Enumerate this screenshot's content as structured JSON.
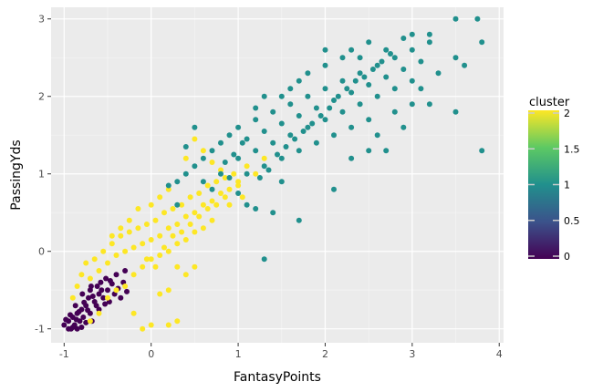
{
  "chart_data": {
    "type": "scatter",
    "title": "",
    "xlabel": "FantasyPoints",
    "ylabel": "PassingYds",
    "xlim": [
      -1.15,
      4.05
    ],
    "ylim": [
      -1.18,
      3.15
    ],
    "x_ticks": [
      -1,
      0,
      1,
      2,
      3,
      4
    ],
    "y_ticks": [
      -1,
      0,
      1,
      2,
      3
    ],
    "x_tick_labels": [
      "-1",
      "0",
      "1",
      "2",
      "3",
      "4"
    ],
    "y_tick_labels": [
      "-1",
      "0",
      "1",
      "2",
      "3"
    ],
    "grid": true,
    "background": "#ebebeb",
    "legend": {
      "title": "cluster",
      "type": "colorbar",
      "placement": "right",
      "range": [
        0,
        2
      ],
      "ticks": [
        0,
        0.5,
        1,
        1.5,
        2
      ],
      "tick_labels": [
        "0",
        "0.5",
        "1",
        "1.5",
        "2"
      ],
      "colors": [
        "#440154",
        "#3b528b",
        "#21908d",
        "#5dc963",
        "#fde725"
      ]
    },
    "series": [
      {
        "cluster": 0,
        "color": "#440154",
        "points": [
          [
            -1.0,
            -0.95
          ],
          [
            -0.95,
            -0.9
          ],
          [
            -0.92,
            -1.0
          ],
          [
            -0.9,
            -0.85
          ],
          [
            -0.88,
            -0.95
          ],
          [
            -0.85,
            -1.0
          ],
          [
            -0.85,
            -0.8
          ],
          [
            -0.82,
            -0.9
          ],
          [
            -0.8,
            -0.75
          ],
          [
            -0.8,
            -0.98
          ],
          [
            -0.78,
            -0.85
          ],
          [
            -0.75,
            -0.7
          ],
          [
            -0.75,
            -0.92
          ],
          [
            -0.72,
            -0.6
          ],
          [
            -0.7,
            -0.8
          ],
          [
            -0.7,
            -0.5
          ],
          [
            -0.68,
            -0.9
          ],
          [
            -0.65,
            -0.65
          ],
          [
            -0.62,
            -0.45
          ],
          [
            -0.6,
            -0.75
          ],
          [
            -0.6,
            -0.55
          ],
          [
            -0.58,
            -0.4
          ],
          [
            -0.55,
            -0.6
          ],
          [
            -0.52,
            -0.35
          ],
          [
            -0.5,
            -0.5
          ],
          [
            -0.48,
            -0.65
          ],
          [
            -0.45,
            -0.42
          ],
          [
            -0.42,
            -0.55
          ],
          [
            -0.4,
            -0.3
          ],
          [
            -0.38,
            -0.48
          ],
          [
            -0.35,
            -0.6
          ],
          [
            -0.32,
            -0.4
          ],
          [
            -0.3,
            -0.25
          ],
          [
            -0.28,
            -0.52
          ],
          [
            -0.95,
            -1.0
          ],
          [
            -0.98,
            -0.88
          ],
          [
            -0.9,
            -0.98
          ],
          [
            -0.86,
            -0.88
          ],
          [
            -0.83,
            -0.78
          ],
          [
            -0.77,
            -0.66
          ],
          [
            -0.73,
            -0.76
          ],
          [
            -0.67,
            -0.58
          ],
          [
            -0.63,
            -0.7
          ],
          [
            -0.57,
            -0.5
          ],
          [
            -0.53,
            -0.68
          ],
          [
            -0.47,
            -0.38
          ],
          [
            -0.87,
            -0.7
          ],
          [
            -0.93,
            -0.82
          ],
          [
            -0.79,
            -0.55
          ],
          [
            -0.69,
            -0.45
          ]
        ]
      },
      {
        "cluster": 2,
        "color": "#fde725",
        "points": [
          [
            -0.9,
            -0.6
          ],
          [
            -0.85,
            -0.45
          ],
          [
            -0.8,
            -0.3
          ],
          [
            -0.75,
            -0.15
          ],
          [
            -0.7,
            -0.35
          ],
          [
            -0.65,
            -0.1
          ],
          [
            -0.6,
            -0.25
          ],
          [
            -0.55,
            0.0
          ],
          [
            -0.5,
            -0.15
          ],
          [
            -0.45,
            0.1
          ],
          [
            -0.4,
            -0.05
          ],
          [
            -0.35,
            0.2
          ],
          [
            -0.3,
            0.0
          ],
          [
            -0.25,
            0.25
          ],
          [
            -0.2,
            0.05
          ],
          [
            -0.15,
            0.3
          ],
          [
            -0.1,
            0.1
          ],
          [
            -0.05,
            0.35
          ],
          [
            0.0,
            0.15
          ],
          [
            0.05,
            0.4
          ],
          [
            0.1,
            0.2
          ],
          [
            0.15,
            0.5
          ],
          [
            0.2,
            0.3
          ],
          [
            0.25,
            0.55
          ],
          [
            0.3,
            0.35
          ],
          [
            0.35,
            0.6
          ],
          [
            0.4,
            0.45
          ],
          [
            0.45,
            0.7
          ],
          [
            0.5,
            0.5
          ],
          [
            0.55,
            0.75
          ],
          [
            0.6,
            0.6
          ],
          [
            0.65,
            0.85
          ],
          [
            0.7,
            0.65
          ],
          [
            0.75,
            0.9
          ],
          [
            0.8,
            0.75
          ],
          [
            0.85,
            0.95
          ],
          [
            0.9,
            0.8
          ],
          [
            0.95,
            1.0
          ],
          [
            1.0,
            0.85
          ],
          [
            1.05,
            0.7
          ],
          [
            -0.2,
            -0.3
          ],
          [
            -0.1,
            -0.2
          ],
          [
            0.0,
            -0.1
          ],
          [
            0.1,
            -0.05
          ],
          [
            0.2,
            0.0
          ],
          [
            0.3,
            0.1
          ],
          [
            0.4,
            0.15
          ],
          [
            0.5,
            0.25
          ],
          [
            0.6,
            0.3
          ],
          [
            0.7,
            0.4
          ],
          [
            -0.5,
            -0.6
          ],
          [
            -0.4,
            -0.5
          ],
          [
            -0.3,
            -0.45
          ],
          [
            -0.6,
            -0.8
          ],
          [
            -0.7,
            -0.9
          ],
          [
            -0.2,
            -0.8
          ],
          [
            0.0,
            -0.95
          ],
          [
            0.2,
            -0.95
          ],
          [
            0.3,
            -0.9
          ],
          [
            -0.1,
            -1.0
          ],
          [
            0.3,
            -0.2
          ],
          [
            0.4,
            -0.3
          ],
          [
            0.5,
            -0.2
          ],
          [
            0.2,
            -0.5
          ],
          [
            0.1,
            -0.55
          ],
          [
            0.15,
            0.05
          ],
          [
            0.05,
            -0.2
          ],
          [
            -0.05,
            -0.1
          ],
          [
            0.25,
            0.2
          ],
          [
            0.35,
            0.25
          ],
          [
            0.45,
            0.35
          ],
          [
            0.55,
            0.45
          ],
          [
            0.65,
            0.55
          ],
          [
            0.75,
            0.6
          ],
          [
            0.85,
            0.7
          ],
          [
            0.9,
            0.6
          ],
          [
            1.0,
            0.9
          ],
          [
            1.1,
            1.1
          ],
          [
            1.2,
            1.0
          ],
          [
            1.3,
            1.2
          ],
          [
            0.6,
            1.3
          ],
          [
            0.5,
            1.45
          ],
          [
            0.7,
            1.15
          ],
          [
            0.8,
            1.05
          ],
          [
            0.4,
            1.2
          ],
          [
            -0.15,
            0.55
          ],
          [
            -0.25,
            0.4
          ],
          [
            -0.35,
            0.3
          ],
          [
            -0.45,
            0.2
          ],
          [
            0.0,
            0.6
          ],
          [
            0.1,
            0.7
          ],
          [
            0.2,
            0.8
          ]
        ]
      },
      {
        "cluster": 1,
        "color": "#21908d",
        "points": [
          [
            0.3,
            0.9
          ],
          [
            0.4,
            1.0
          ],
          [
            0.5,
            1.1
          ],
          [
            0.6,
            1.2
          ],
          [
            0.7,
            1.3
          ],
          [
            0.8,
            1.4
          ],
          [
            0.9,
            1.5
          ],
          [
            1.0,
            1.6
          ],
          [
            1.1,
            1.45
          ],
          [
            1.2,
            1.7
          ],
          [
            1.3,
            1.55
          ],
          [
            1.4,
            1.8
          ],
          [
            1.5,
            1.65
          ],
          [
            1.6,
            1.9
          ],
          [
            1.7,
            1.75
          ],
          [
            1.8,
            2.0
          ],
          [
            1.9,
            1.85
          ],
          [
            2.0,
            2.1
          ],
          [
            2.1,
            1.95
          ],
          [
            2.2,
            2.2
          ],
          [
            2.3,
            2.05
          ],
          [
            2.4,
            2.3
          ],
          [
            2.5,
            2.15
          ],
          [
            2.6,
            2.4
          ],
          [
            2.7,
            2.25
          ],
          [
            2.8,
            2.5
          ],
          [
            2.9,
            2.35
          ],
          [
            3.0,
            2.6
          ],
          [
            3.1,
            2.45
          ],
          [
            3.2,
            2.7
          ],
          [
            1.0,
            1.2
          ],
          [
            1.1,
            1.0
          ],
          [
            1.2,
            1.3
          ],
          [
            1.3,
            1.1
          ],
          [
            1.4,
            1.4
          ],
          [
            1.5,
            1.2
          ],
          [
            1.6,
            1.5
          ],
          [
            1.7,
            1.3
          ],
          [
            1.8,
            1.6
          ],
          [
            1.9,
            1.4
          ],
          [
            2.0,
            1.7
          ],
          [
            2.1,
            1.5
          ],
          [
            2.2,
            1.8
          ],
          [
            2.3,
            1.6
          ],
          [
            2.4,
            1.9
          ],
          [
            2.5,
            1.7
          ],
          [
            0.6,
            0.9
          ],
          [
            0.7,
            0.8
          ],
          [
            0.8,
            1.0
          ],
          [
            0.9,
            0.95
          ],
          [
            1.0,
            0.75
          ],
          [
            1.1,
            0.6
          ],
          [
            1.2,
            0.55
          ],
          [
            1.5,
            0.9
          ],
          [
            1.4,
            0.5
          ],
          [
            1.3,
            -0.1
          ],
          [
            1.7,
            0.4
          ],
          [
            2.1,
            0.8
          ],
          [
            2.3,
            1.2
          ],
          [
            2.5,
            1.3
          ],
          [
            2.6,
            1.5
          ],
          [
            2.7,
            1.3
          ],
          [
            2.8,
            1.8
          ],
          [
            3.0,
            1.9
          ],
          [
            3.2,
            1.9
          ],
          [
            3.5,
            1.8
          ],
          [
            3.8,
            1.3
          ],
          [
            3.6,
            2.4
          ],
          [
            3.5,
            2.5
          ],
          [
            3.8,
            2.7
          ],
          [
            3.5,
            3.0
          ],
          [
            3.75,
            3.0
          ],
          [
            3.2,
            2.8
          ],
          [
            3.0,
            2.8
          ],
          [
            2.9,
            2.75
          ],
          [
            2.5,
            2.7
          ],
          [
            2.2,
            2.5
          ],
          [
            2.0,
            2.4
          ],
          [
            1.8,
            2.3
          ],
          [
            1.6,
            2.1
          ],
          [
            1.5,
            2.0
          ],
          [
            1.7,
            2.2
          ],
          [
            2.0,
            2.6
          ],
          [
            2.3,
            2.6
          ],
          [
            2.7,
            2.6
          ],
          [
            2.4,
            2.5
          ],
          [
            2.6,
            2.0
          ],
          [
            2.8,
            2.1
          ],
          [
            3.0,
            2.2
          ],
          [
            3.1,
            2.1
          ],
          [
            3.3,
            2.3
          ],
          [
            2.9,
            1.6
          ],
          [
            0.5,
            1.6
          ],
          [
            0.4,
            1.35
          ],
          [
            0.3,
            0.6
          ],
          [
            0.2,
            0.85
          ],
          [
            1.2,
            1.85
          ],
          [
            1.3,
            2.0
          ],
          [
            1.05,
            1.4
          ],
          [
            0.95,
            1.25
          ],
          [
            0.85,
            1.15
          ],
          [
            1.25,
            0.95
          ],
          [
            1.35,
            1.05
          ],
          [
            1.45,
            1.25
          ],
          [
            1.55,
            1.35
          ],
          [
            1.65,
            1.45
          ],
          [
            1.75,
            1.55
          ],
          [
            1.85,
            1.65
          ],
          [
            1.95,
            1.75
          ],
          [
            2.05,
            1.85
          ],
          [
            2.15,
            2.0
          ],
          [
            2.25,
            2.1
          ],
          [
            2.35,
            2.2
          ],
          [
            2.45,
            2.25
          ],
          [
            2.55,
            2.35
          ],
          [
            2.65,
            2.45
          ],
          [
            2.75,
            2.55
          ]
        ]
      }
    ]
  }
}
